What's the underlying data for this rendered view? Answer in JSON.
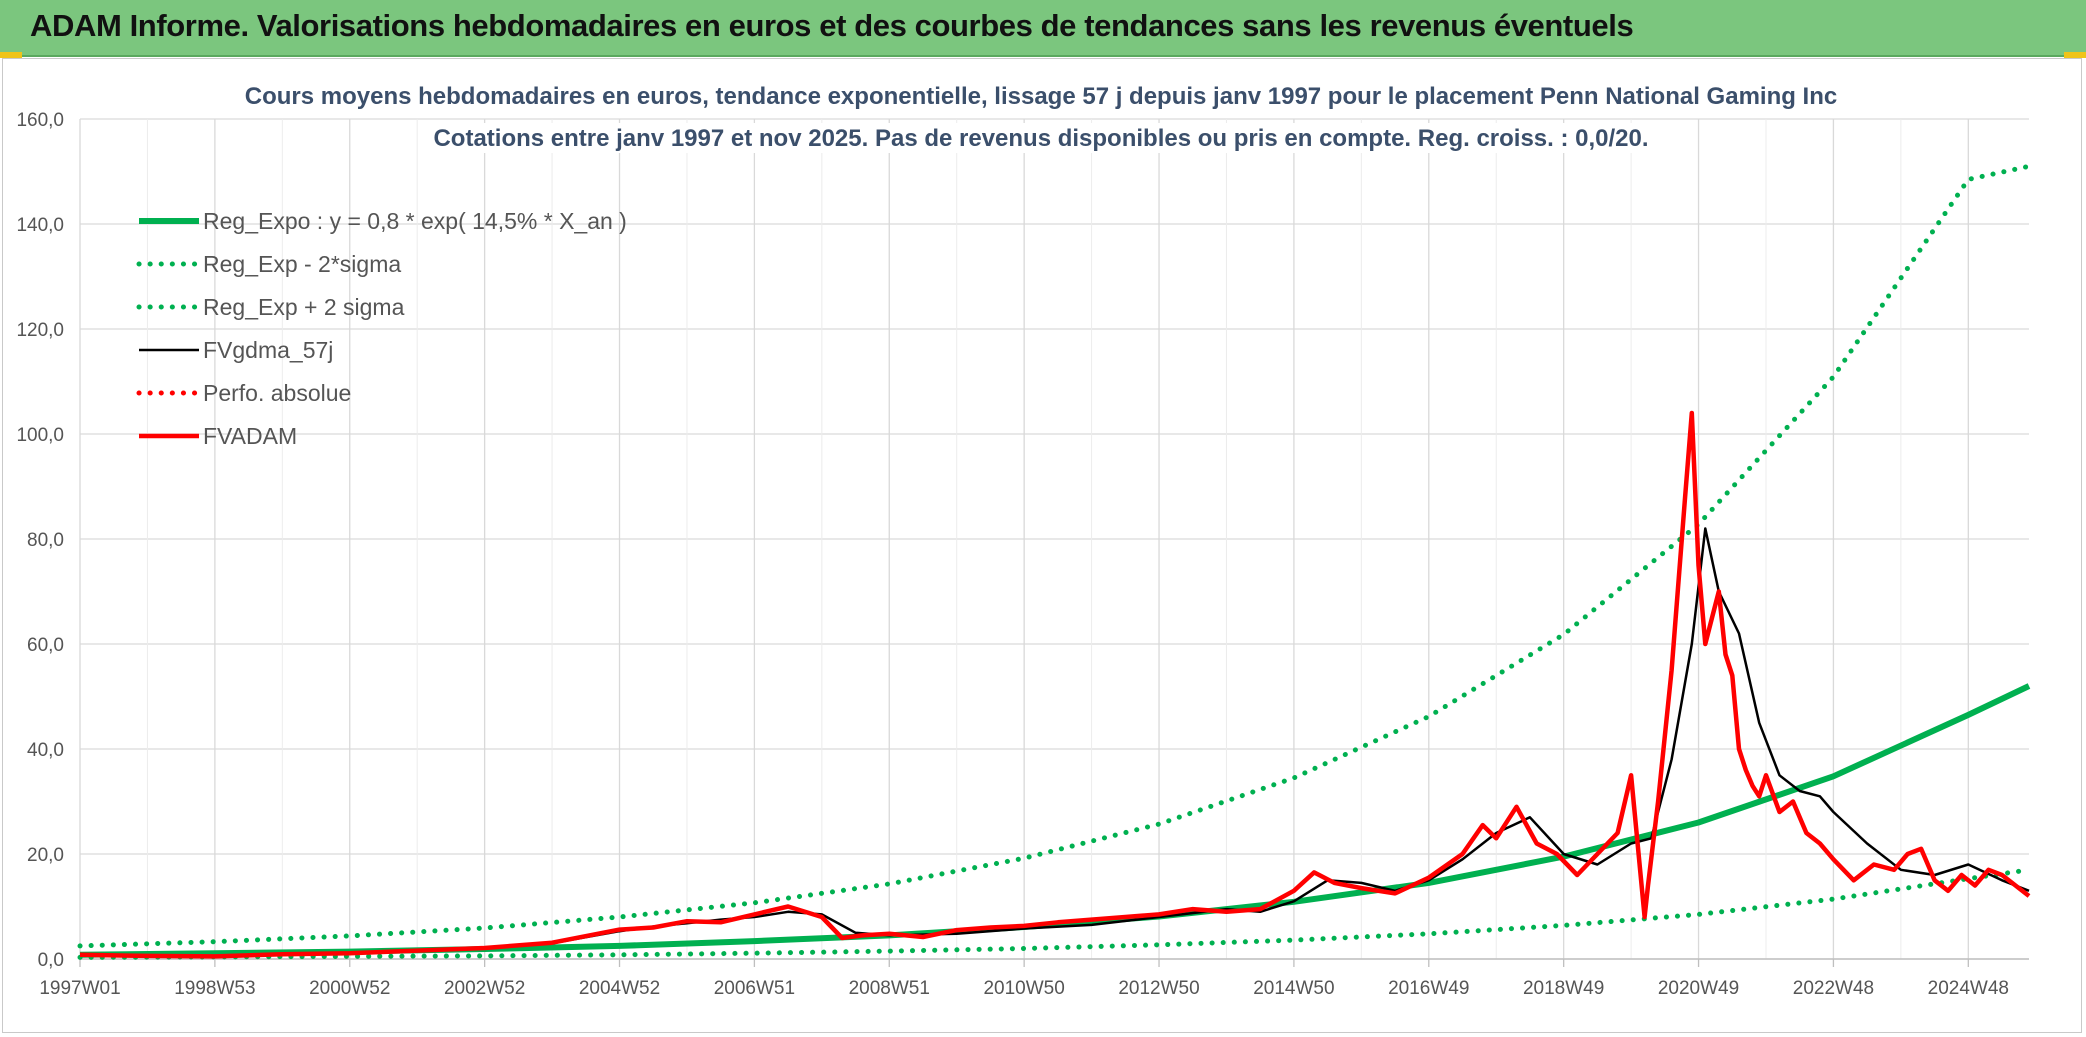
{
  "banner": {
    "title": "ADAM Informe. Valorisations hebdomadaires en euros et des courbes de tendances sans les revenus éventuels"
  },
  "colors": {
    "banner_bg": "#7bc67e",
    "green": "#00b050",
    "red": "#ff0000",
    "black": "#000000",
    "title": "#3b4f6b"
  },
  "chart_data": {
    "type": "line",
    "title": "Cours moyens hebdomadaires en euros, tendance exponentielle, lissage 57 j depuis janv 1997 pour le placement Penn National Gaming Inc",
    "subtitle": "Cotations entre janv 1997 et nov 2025. Pas de revenus disponibles ou pris en compte. Reg. croiss. : 0,0/20.",
    "xlabel": "",
    "ylabel": "",
    "ylim": [
      0,
      160
    ],
    "xlim": [
      1997.0,
      2025.9
    ],
    "grid": true,
    "legend_position": "top-left",
    "x_tick_labels": [
      "1997W01",
      "1998W53",
      "2000W52",
      "2002W52",
      "2004W52",
      "2006W51",
      "2008W51",
      "2010W50",
      "2012W50",
      "2014W50",
      "2016W49",
      "2018W49",
      "2020W49",
      "2022W48",
      "2024W48"
    ],
    "x_tick_positions": [
      1997.0,
      1999.0,
      2001.0,
      2003.0,
      2005.0,
      2007.0,
      2009.0,
      2011.0,
      2013.0,
      2015.0,
      2017.0,
      2019.0,
      2021.0,
      2023.0,
      2025.0
    ],
    "y_tick_labels": [
      "0,0",
      "20,0",
      "40,0",
      "60,0",
      "80,0",
      "100,0",
      "120,0",
      "140,0",
      "160,0"
    ],
    "y_tick_values": [
      0,
      20,
      40,
      60,
      80,
      100,
      120,
      140,
      160
    ],
    "series": [
      {
        "name": "Reg_Expo : y = 0,8 * exp( 14,5% *  X_an )",
        "style": "solid-thick",
        "color": "#00b050",
        "x": [
          1997.0,
          1999.0,
          2001.0,
          2003.0,
          2005.0,
          2007.0,
          2009.0,
          2011.0,
          2013.0,
          2015.0,
          2017.0,
          2019.0,
          2021.0,
          2023.0,
          2025.0,
          2025.9
        ],
        "y": [
          0.8,
          1.1,
          1.4,
          1.9,
          2.5,
          3.4,
          4.5,
          6.1,
          8.1,
          10.9,
          14.5,
          19.5,
          26.0,
          34.8,
          46.5,
          52.0
        ]
      },
      {
        "name": "Reg_Exp - 2*sigma",
        "style": "dotted",
        "color": "#00b050",
        "x": [
          1997.0,
          1999.0,
          2001.0,
          2003.0,
          2005.0,
          2007.0,
          2009.0,
          2011.0,
          2013.0,
          2015.0,
          2017.0,
          2019.0,
          2021.0,
          2023.0,
          2025.0,
          2025.9
        ],
        "y": [
          0.3,
          0.4,
          0.5,
          0.6,
          0.8,
          1.1,
          1.5,
          2.0,
          2.7,
          3.6,
          4.8,
          6.4,
          8.5,
          11.4,
          15.3,
          17.0
        ]
      },
      {
        "name": "Reg_Exp + 2 sigma",
        "style": "dotted",
        "color": "#00b050",
        "x": [
          1997.0,
          1999.0,
          2001.0,
          2003.0,
          2005.0,
          2007.0,
          2009.0,
          2011.0,
          2013.0,
          2015.0,
          2017.0,
          2019.0,
          2021.0,
          2023.0,
          2025.0,
          2025.9
        ],
        "y": [
          2.5,
          3.3,
          4.4,
          5.9,
          8.0,
          10.7,
          14.3,
          19.2,
          25.7,
          34.5,
          46.2,
          61.8,
          82.8,
          110.9,
          148.5,
          151.0
        ]
      },
      {
        "name": "FVgdma_57j",
        "style": "solid",
        "color": "#000000",
        "x": [
          1997.0,
          1998.0,
          1999.0,
          2000.0,
          2001.0,
          2002.0,
          2003.0,
          2004.0,
          2005.0,
          2005.5,
          2006.0,
          2006.5,
          2007.0,
          2007.5,
          2008.0,
          2008.5,
          2009.0,
          2010.0,
          2011.0,
          2012.0,
          2013.0,
          2014.0,
          2014.5,
          2015.0,
          2015.5,
          2016.0,
          2016.5,
          2017.0,
          2017.5,
          2018.0,
          2018.5,
          2019.0,
          2019.5,
          2020.0,
          2020.3,
          2020.6,
          2020.9,
          2021.1,
          2021.3,
          2021.6,
          2021.9,
          2022.2,
          2022.5,
          2022.8,
          2023.0,
          2023.5,
          2024.0,
          2024.5,
          2025.0,
          2025.5,
          2025.9
        ],
        "y": [
          0.7,
          0.6,
          0.6,
          0.8,
          1.0,
          1.5,
          2.2,
          3.0,
          5.3,
          6.2,
          6.8,
          7.5,
          8.0,
          9.0,
          8.5,
          5.0,
          4.5,
          4.8,
          5.8,
          6.5,
          8.0,
          9.5,
          9.0,
          11.0,
          15.0,
          14.5,
          13.0,
          15.0,
          19.0,
          24.0,
          27.0,
          20.0,
          18.0,
          22.0,
          23.0,
          38.0,
          60.0,
          82.0,
          70.0,
          62.0,
          45.0,
          35.0,
          32.0,
          31.0,
          28.0,
          22.0,
          17.0,
          16.0,
          18.0,
          15.0,
          13.0
        ]
      },
      {
        "name": "Perfo. absolue",
        "style": "dotted",
        "color": "#ff0000",
        "x": [],
        "y": []
      },
      {
        "name": "FVADAM",
        "style": "solid-thick",
        "color": "#ff0000",
        "x": [
          1997.0,
          1998.0,
          1999.0,
          2000.0,
          2001.0,
          2002.0,
          2003.0,
          2004.0,
          2005.0,
          2005.5,
          2006.0,
          2006.5,
          2007.0,
          2007.5,
          2008.0,
          2008.3,
          2008.6,
          2009.0,
          2009.5,
          2010.0,
          2010.5,
          2011.0,
          2011.5,
          2012.0,
          2012.5,
          2013.0,
          2013.5,
          2014.0,
          2014.5,
          2015.0,
          2015.3,
          2015.6,
          2016.0,
          2016.5,
          2017.0,
          2017.5,
          2017.8,
          2018.0,
          2018.3,
          2018.6,
          2018.9,
          2019.2,
          2019.5,
          2019.8,
          2020.0,
          2020.2,
          2020.25,
          2020.4,
          2020.6,
          2020.8,
          2020.9,
          2021.0,
          2021.1,
          2021.2,
          2021.3,
          2021.4,
          2021.5,
          2021.6,
          2021.7,
          2021.8,
          2021.9,
          2022.0,
          2022.2,
          2022.4,
          2022.6,
          2022.8,
          2023.0,
          2023.3,
          2023.6,
          2023.9,
          2024.1,
          2024.3,
          2024.5,
          2024.7,
          2024.9,
          2025.1,
          2025.3,
          2025.5,
          2025.7,
          2025.9
        ],
        "y": [
          0.8,
          0.6,
          0.5,
          0.9,
          1.1,
          1.6,
          2.1,
          3.1,
          5.6,
          6.0,
          7.2,
          7.0,
          8.5,
          10.0,
          8.0,
          4.0,
          4.5,
          4.8,
          4.2,
          5.5,
          6.0,
          6.3,
          7.0,
          7.5,
          8.0,
          8.5,
          9.5,
          9.0,
          9.5,
          13.0,
          16.5,
          14.5,
          13.5,
          12.5,
          15.5,
          20.0,
          25.5,
          23.0,
          29.0,
          22.0,
          20.0,
          16.0,
          20.0,
          24.0,
          35.0,
          8.0,
          14.0,
          30.0,
          55.0,
          88.0,
          104.0,
          75.0,
          60.0,
          65.0,
          70.0,
          58.0,
          54.0,
          40.0,
          36.0,
          33.0,
          31.0,
          35.0,
          28.0,
          30.0,
          24.0,
          22.0,
          19.0,
          15.0,
          18.0,
          17.0,
          20.0,
          21.0,
          15.0,
          13.0,
          16.0,
          14.0,
          17.0,
          16.0,
          14.0,
          12.0
        ]
      }
    ]
  }
}
